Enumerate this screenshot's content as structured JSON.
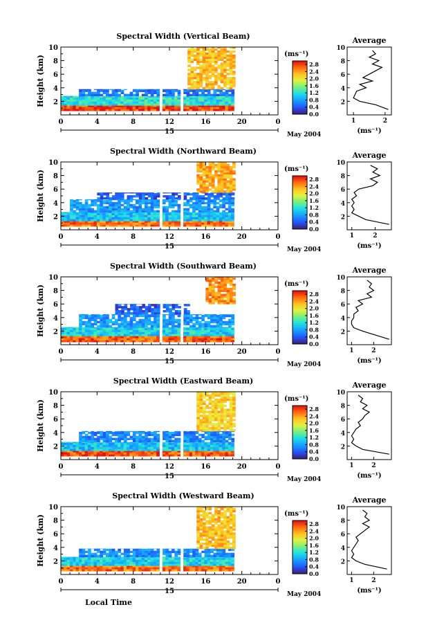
{
  "figure": {
    "xlabel": "Local Time",
    "date_label": "May 2004",
    "colorbar_unit": "(ms⁻¹)",
    "average_title": "Average",
    "average_xlabel": "(ms⁻¹)"
  },
  "chart_data": [
    {
      "type": "heatmap",
      "title": "Spectral Width (Vertical Beam)",
      "ylabel": "Height (km)",
      "x_ticks": [
        "0",
        "4",
        "8",
        "12",
        "16",
        "20",
        "0"
      ],
      "day_tick": "15",
      "xlim": [
        0,
        24
      ],
      "ylim": [
        0,
        10
      ],
      "y_ticks": [
        "2",
        "4",
        "6",
        "8",
        "10"
      ],
      "colorbar": {
        "ticks": [
          "0.0",
          "0.4",
          "0.8",
          "1.2",
          "1.6",
          "2.0",
          "2.4",
          "2.8"
        ],
        "range": [
          0.0,
          3.0
        ]
      },
      "data_extent": {
        "start_hour": 0,
        "end_hour": 19,
        "gaps_hours": [
          [
            10.7,
            11.2
          ],
          [
            13.2,
            13.5
          ]
        ]
      },
      "layers": [
        {
          "from_hour": 0,
          "to_hour": 19,
          "height_km": [
            0.6,
            1.4
          ],
          "width_ms": 2.8
        },
        {
          "from_hour": 0,
          "to_hour": 19,
          "height_km": [
            1.4,
            2.8
          ],
          "width_ms": 1.2
        },
        {
          "from_hour": 2,
          "to_hour": 19,
          "height_km": [
            2.8,
            3.8
          ],
          "width_ms": 0.5
        },
        {
          "from_hour": 14,
          "to_hour": 19,
          "height_km": [
            3.8,
            10.0
          ],
          "width_ms": 2.2
        }
      ],
      "average": {
        "x_ticks": [
          "1",
          "2"
        ],
        "xlim": [
          0.8,
          2.2
        ],
        "profile": {
          "height_km": [
            0.8,
            1.5,
            2.0,
            2.5,
            3.0,
            3.5,
            4.0,
            4.5,
            5.0,
            5.5,
            6.0,
            6.5,
            7.0,
            7.5,
            8.0,
            8.5,
            9.0,
            9.5
          ],
          "width_ms": [
            2.1,
            1.7,
            1.2,
            1.0,
            1.05,
            1.1,
            1.4,
            1.2,
            1.6,
            1.3,
            1.5,
            1.7,
            1.9,
            1.6,
            1.8,
            1.5,
            1.7,
            1.6
          ]
        }
      }
    },
    {
      "type": "heatmap",
      "title": "Spectral Width (Northward Beam)",
      "ylabel": "Height (km)",
      "x_ticks": [
        "0",
        "4",
        "8",
        "12",
        "16",
        "20",
        "0"
      ],
      "day_tick": "15",
      "xlim": [
        0,
        24
      ],
      "ylim": [
        0,
        10
      ],
      "y_ticks": [
        "2",
        "4",
        "6",
        "8",
        "10"
      ],
      "colorbar": {
        "ticks": [
          "0.0",
          "0.4",
          "0.8",
          "1.2",
          "1.6",
          "2.0",
          "2.4",
          "2.8"
        ],
        "range": [
          0.0,
          3.0
        ]
      },
      "data_extent": {
        "start_hour": 0,
        "end_hour": 19,
        "gaps_hours": [
          [
            10.7,
            11.2
          ],
          [
            13.2,
            13.5
          ]
        ]
      },
      "layers": [
        {
          "from_hour": 0,
          "to_hour": 19,
          "height_km": [
            0.5,
            1.3
          ],
          "width_ms": 2.6
        },
        {
          "from_hour": 0,
          "to_hour": 19,
          "height_km": [
            1.3,
            2.6
          ],
          "width_ms": 1.0
        },
        {
          "from_hour": 1,
          "to_hour": 19,
          "height_km": [
            2.6,
            4.5
          ],
          "width_ms": 0.7
        },
        {
          "from_hour": 4,
          "to_hour": 19,
          "height_km": [
            4.5,
            5.5
          ],
          "width_ms": 0.4
        },
        {
          "from_hour": 15,
          "to_hour": 19,
          "height_km": [
            5.5,
            10.0
          ],
          "width_ms": 2.3
        }
      ],
      "average": {
        "x_ticks": [
          "1",
          "2"
        ],
        "xlim": [
          0.8,
          2.7
        ],
        "profile": {
          "height_km": [
            0.8,
            1.5,
            2.0,
            2.5,
            3.0,
            3.5,
            4.0,
            4.5,
            5.0,
            5.5,
            6.0,
            6.5,
            7.0,
            7.5,
            8.0,
            8.5,
            9.0,
            9.5
          ],
          "width_ms": [
            2.6,
            1.6,
            1.3,
            1.0,
            1.1,
            1.0,
            1.1,
            1.0,
            1.2,
            1.1,
            1.3,
            1.9,
            2.1,
            1.8,
            2.2,
            1.9,
            2.1,
            1.8
          ]
        }
      }
    },
    {
      "type": "heatmap",
      "title": "Spectral Width (Southward Beam)",
      "ylabel": "Height (km)",
      "x_ticks": [
        "0",
        "4",
        "8",
        "12",
        "16",
        "20",
        "0"
      ],
      "day_tick": "15",
      "xlim": [
        0,
        24
      ],
      "ylim": [
        0,
        10
      ],
      "y_ticks": [
        "2",
        "4",
        "6",
        "8",
        "10"
      ],
      "colorbar": {
        "ticks": [
          "0.0",
          "0.4",
          "0.8",
          "1.2",
          "1.6",
          "2.0",
          "2.4",
          "2.8"
        ],
        "range": [
          0.0,
          3.0
        ]
      },
      "data_extent": {
        "start_hour": 0,
        "end_hour": 19,
        "gaps_hours": [
          [
            10.7,
            11.2
          ],
          [
            13.2,
            13.5
          ]
        ]
      },
      "layers": [
        {
          "from_hour": 0,
          "to_hour": 19,
          "height_km": [
            0.4,
            1.3
          ],
          "width_ms": 2.7
        },
        {
          "from_hour": 0,
          "to_hour": 19,
          "height_km": [
            1.3,
            2.6
          ],
          "width_ms": 1.1
        },
        {
          "from_hour": 2,
          "to_hour": 19,
          "height_km": [
            2.6,
            4.5
          ],
          "width_ms": 0.7
        },
        {
          "from_hour": 6,
          "to_hour": 14,
          "height_km": [
            4.5,
            6.0
          ],
          "width_ms": 0.4
        },
        {
          "from_hour": 16,
          "to_hour": 19,
          "height_km": [
            6.0,
            10.0
          ],
          "width_ms": 2.4
        }
      ],
      "average": {
        "x_ticks": [
          "1",
          "2"
        ],
        "xlim": [
          0.8,
          2.8
        ],
        "profile": {
          "height_km": [
            0.8,
            1.5,
            2.0,
            2.5,
            3.0,
            3.5,
            4.0,
            4.5,
            5.0,
            5.5,
            6.0,
            6.5,
            7.0,
            7.5,
            8.0,
            8.5,
            9.0,
            9.5
          ],
          "width_ms": [
            2.7,
            2.0,
            1.5,
            1.1,
            1.0,
            1.0,
            1.1,
            1.1,
            1.3,
            1.2,
            1.5,
            1.3,
            1.9,
            1.7,
            2.0,
            1.8,
            1.9,
            1.7
          ]
        }
      }
    },
    {
      "type": "heatmap",
      "title": "Spectral Width (Eastward Beam)",
      "ylabel": "Height (km)",
      "x_ticks": [
        "0",
        "4",
        "8",
        "12",
        "16",
        "20",
        "0"
      ],
      "day_tick": "15",
      "xlim": [
        0,
        24
      ],
      "ylim": [
        0,
        10
      ],
      "y_ticks": [
        "2",
        "4",
        "6",
        "8",
        "10"
      ],
      "colorbar": {
        "ticks": [
          "0.0",
          "0.4",
          "0.8",
          "1.2",
          "1.6",
          "2.0",
          "2.4",
          "2.8"
        ],
        "range": [
          0.0,
          3.0
        ]
      },
      "data_extent": {
        "start_hour": 0,
        "end_hour": 19,
        "gaps_hours": [
          [
            10.7,
            11.2
          ],
          [
            13.2,
            13.5
          ]
        ]
      },
      "layers": [
        {
          "from_hour": 0,
          "to_hour": 19,
          "height_km": [
            0.5,
            1.3
          ],
          "width_ms": 2.7
        },
        {
          "from_hour": 0,
          "to_hour": 19,
          "height_km": [
            1.3,
            2.6
          ],
          "width_ms": 1.0
        },
        {
          "from_hour": 2,
          "to_hour": 19,
          "height_km": [
            2.6,
            4.2
          ],
          "width_ms": 0.6
        },
        {
          "from_hour": 15,
          "to_hour": 19,
          "height_km": [
            4.2,
            10.0
          ],
          "width_ms": 2.1
        }
      ],
      "average": {
        "x_ticks": [
          "1",
          "2"
        ],
        "xlim": [
          0.8,
          2.8
        ],
        "profile": {
          "height_km": [
            0.8,
            1.5,
            2.0,
            2.5,
            3.0,
            3.5,
            4.0,
            4.5,
            5.0,
            5.5,
            6.0,
            6.5,
            7.0,
            7.5,
            8.0,
            8.5,
            9.0,
            9.5
          ],
          "width_ms": [
            2.7,
            1.5,
            1.2,
            1.0,
            1.1,
            1.0,
            1.1,
            1.2,
            1.4,
            1.3,
            1.5,
            1.6,
            1.8,
            1.5,
            1.7,
            1.4,
            1.5,
            1.3
          ]
        }
      }
    },
    {
      "type": "heatmap",
      "title": "Spectral Width (Westward Beam)",
      "ylabel": "Height (km)",
      "x_ticks": [
        "0",
        "4",
        "8",
        "12",
        "16",
        "20",
        "0"
      ],
      "day_tick": "15",
      "xlim": [
        0,
        24
      ],
      "ylim": [
        0,
        10
      ],
      "y_ticks": [
        "2",
        "4",
        "6",
        "8",
        "10"
      ],
      "colorbar": {
        "ticks": [
          "0.0",
          "0.4",
          "0.8",
          "1.2",
          "1.6",
          "2.0",
          "2.4",
          "2.8"
        ],
        "range": [
          0.0,
          3.0
        ]
      },
      "data_extent": {
        "start_hour": 0,
        "end_hour": 19,
        "gaps_hours": [
          [
            10.7,
            11.2
          ],
          [
            13.2,
            13.5
          ]
        ]
      },
      "layers": [
        {
          "from_hour": 0,
          "to_hour": 19,
          "height_km": [
            0.5,
            1.3
          ],
          "width_ms": 2.6
        },
        {
          "from_hour": 0,
          "to_hour": 19,
          "height_km": [
            1.3,
            2.6
          ],
          "width_ms": 1.1
        },
        {
          "from_hour": 2,
          "to_hour": 19,
          "height_km": [
            2.6,
            3.8
          ],
          "width_ms": 0.6
        },
        {
          "from_hour": 15,
          "to_hour": 19,
          "height_km": [
            3.8,
            10.0
          ],
          "width_ms": 2.2
        }
      ],
      "average": {
        "x_ticks": [
          "1",
          "2"
        ],
        "xlim": [
          0.8,
          2.8
        ],
        "profile": {
          "height_km": [
            0.8,
            1.5,
            2.0,
            2.5,
            3.0,
            3.5,
            4.0,
            4.5,
            5.0,
            5.5,
            6.0,
            6.5,
            7.0,
            7.5,
            8.0,
            8.5,
            9.0,
            9.5
          ],
          "width_ms": [
            2.6,
            1.6,
            1.2,
            1.0,
            1.1,
            1.0,
            1.1,
            1.2,
            1.3,
            1.2,
            1.4,
            1.6,
            1.8,
            1.5,
            1.8,
            1.6,
            1.7,
            1.5
          ]
        }
      }
    }
  ]
}
